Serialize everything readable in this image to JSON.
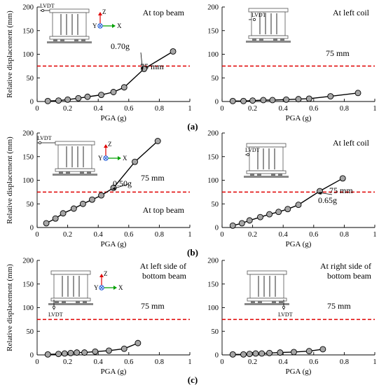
{
  "chart_data": [
    {
      "type": "line",
      "panel_label": "(a)",
      "xlabel": "PGA (g)",
      "ylabel": "Relative displacement (mm)",
      "xlim": [
        0,
        1
      ],
      "ylim": [
        0,
        200
      ],
      "xticks": [
        "0",
        "0.2",
        "0.4",
        "0.6",
        "0.8",
        "1"
      ],
      "yticks": [
        "0",
        "50",
        "100",
        "150",
        "200"
      ],
      "location": "At top beam",
      "threshold": 75,
      "threshold_label": "75 mm",
      "points": [
        [
          0.07,
          1
        ],
        [
          0.14,
          2
        ],
        [
          0.2,
          4
        ],
        [
          0.27,
          7
        ],
        [
          0.33,
          10
        ],
        [
          0.42,
          14
        ],
        [
          0.5,
          20
        ],
        [
          0.57,
          30
        ],
        [
          0.7,
          69
        ],
        [
          0.89,
          106
        ]
      ],
      "callout": "0.70g",
      "callout_x": 0.7,
      "diagram_labels": {
        "sensor": "LVDT",
        "x": "X",
        "y": "Y",
        "z": "Z"
      }
    },
    {
      "type": "line",
      "xlabel": "PGA (g)",
      "xlim": [
        0,
        1
      ],
      "ylim": [
        0,
        200
      ],
      "xticks": [
        "0",
        "0.2",
        "0.4",
        "0.6",
        "0.8",
        "1"
      ],
      "yticks": [
        "0",
        "50",
        "100",
        "150",
        "200"
      ],
      "location": "At left coil",
      "threshold": 75,
      "threshold_label": "75 mm",
      "points": [
        [
          0.07,
          1
        ],
        [
          0.14,
          1
        ],
        [
          0.2,
          2
        ],
        [
          0.27,
          3
        ],
        [
          0.33,
          3
        ],
        [
          0.42,
          4
        ],
        [
          0.5,
          5
        ],
        [
          0.57,
          6
        ],
        [
          0.71,
          11
        ],
        [
          0.89,
          18
        ]
      ],
      "diagram_labels": {
        "sensor": "LVDT"
      }
    },
    {
      "type": "line",
      "panel_label": "(b)",
      "xlabel": "PGA (g)",
      "ylabel": "Relative displacement (mm)",
      "xlim": [
        0,
        1
      ],
      "ylim": [
        0,
        200
      ],
      "xticks": [
        "0",
        "0.2",
        "0.4",
        "0.6",
        "0.8",
        "1"
      ],
      "yticks": [
        "0",
        "50",
        "100",
        "150",
        "200"
      ],
      "location": "At top beam",
      "threshold": 75,
      "threshold_label": "75 mm",
      "points": [
        [
          0.06,
          9
        ],
        [
          0.12,
          19
        ],
        [
          0.17,
          30
        ],
        [
          0.24,
          40
        ],
        [
          0.3,
          50
        ],
        [
          0.36,
          59
        ],
        [
          0.42,
          68
        ],
        [
          0.5,
          84
        ],
        [
          0.64,
          139
        ],
        [
          0.79,
          183
        ]
      ],
      "callout": "0.50g",
      "callout_x": 0.5,
      "diagram_labels": {
        "sensor": "LVDT",
        "x": "X",
        "y": "Y",
        "z": "Z"
      }
    },
    {
      "type": "line",
      "xlabel": "PGA (g)",
      "xlim": [
        0,
        1
      ],
      "ylim": [
        0,
        200
      ],
      "xticks": [
        "0",
        "0.2",
        "0.4",
        "0.6",
        "0.8",
        "1"
      ],
      "yticks": [
        "0",
        "50",
        "100",
        "150",
        "200"
      ],
      "location": "At left coil",
      "threshold": 75,
      "threshold_label": "75 mm",
      "points": [
        [
          0.07,
          4
        ],
        [
          0.13,
          9
        ],
        [
          0.18,
          15
        ],
        [
          0.25,
          22
        ],
        [
          0.31,
          28
        ],
        [
          0.37,
          33
        ],
        [
          0.43,
          39
        ],
        [
          0.5,
          48
        ],
        [
          0.64,
          77
        ],
        [
          0.79,
          104
        ]
      ],
      "callout": "0.65g",
      "callout_x": 0.64,
      "diagram_labels": {
        "sensor": "LVDT"
      }
    },
    {
      "type": "line",
      "panel_label": "(c)",
      "xlabel": "PGA (g)",
      "ylabel": "Relative displacement (mm)",
      "xlim": [
        0,
        1
      ],
      "ylim": [
        0,
        200
      ],
      "xticks": [
        "0",
        "0.2",
        "0.4",
        "0.6",
        "0.8",
        "1"
      ],
      "yticks": [
        "0",
        "50",
        "100",
        "150",
        "200"
      ],
      "location": "At left side of\nbottom beam",
      "threshold": 75,
      "threshold_label": "75 mm",
      "points": [
        [
          0.07,
          1
        ],
        [
          0.14,
          2
        ],
        [
          0.18,
          3
        ],
        [
          0.22,
          4
        ],
        [
          0.26,
          5
        ],
        [
          0.31,
          5
        ],
        [
          0.38,
          7
        ],
        [
          0.47,
          9
        ],
        [
          0.57,
          13
        ],
        [
          0.66,
          25
        ]
      ],
      "diagram_labels": {
        "sensor": "LVDT",
        "x": "X",
        "y": "Y",
        "z": "Z"
      }
    },
    {
      "type": "line",
      "xlabel": "PGA (g)",
      "xlim": [
        0,
        1
      ],
      "ylim": [
        0,
        200
      ],
      "xticks": [
        "0",
        "0.2",
        "0.4",
        "0.6",
        "0.8",
        "1"
      ],
      "yticks": [
        "0",
        "50",
        "100",
        "150",
        "200"
      ],
      "location": "At right side of\nbottom beam",
      "threshold": 75,
      "threshold_label": "75 mm",
      "points": [
        [
          0.07,
          1
        ],
        [
          0.14,
          1
        ],
        [
          0.18,
          2
        ],
        [
          0.22,
          3
        ],
        [
          0.26,
          3
        ],
        [
          0.31,
          4
        ],
        [
          0.38,
          5
        ],
        [
          0.47,
          6
        ],
        [
          0.57,
          8
        ],
        [
          0.66,
          12
        ]
      ],
      "diagram_labels": {
        "sensor": "LVDT"
      }
    }
  ]
}
